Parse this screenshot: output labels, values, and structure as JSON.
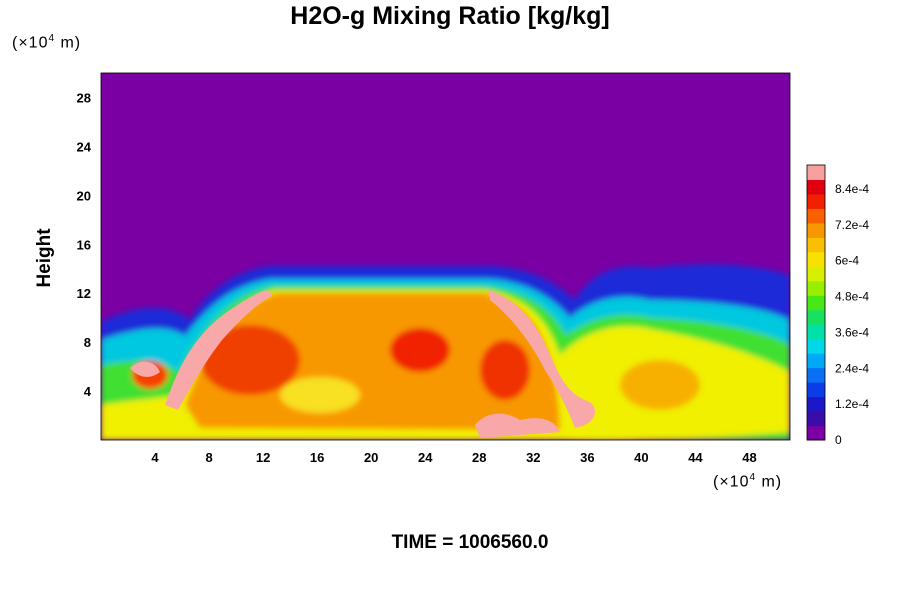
{
  "chart_data": {
    "type": "heatmap",
    "title": "H2O-g Mixing Ratio [kg/kg]",
    "ylabel": "Height",
    "xlabel": "",
    "x_unit": {
      "base": "(×10",
      "exp": "4",
      "suffix": " m)"
    },
    "y_unit": {
      "base": "(×10",
      "exp": "4",
      "suffix": " m)"
    },
    "xlim": [
      0,
      51
    ],
    "ylim": [
      0,
      30
    ],
    "x_ticks": [
      "4",
      "8",
      "12",
      "16",
      "20",
      "24",
      "28",
      "32",
      "36",
      "40",
      "44",
      "48"
    ],
    "y_ticks": [
      "4",
      "8",
      "12",
      "16",
      "20",
      "24",
      "28"
    ],
    "colorbar": {
      "labels": [
        "0",
        "1.2e-4",
        "2.4e-4",
        "3.6e-4",
        "4.8e-4",
        "6e-4",
        "7.2e-4",
        "8.4e-4"
      ],
      "range": [
        0,
        0.00092
      ],
      "colors": [
        "#7a00a4",
        "#3a0ca8",
        "#1c18c8",
        "#0a3ce8",
        "#0a70f4",
        "#00a8f8",
        "#00d8e8",
        "#00e0a8",
        "#18e060",
        "#48e818",
        "#98f000",
        "#d8f000",
        "#f8e000",
        "#f8c000",
        "#f89800",
        "#f86000",
        "#f02000",
        "#e00010",
        "#f8a0a0"
      ]
    },
    "time_label": "TIME = 1006560.0"
  }
}
